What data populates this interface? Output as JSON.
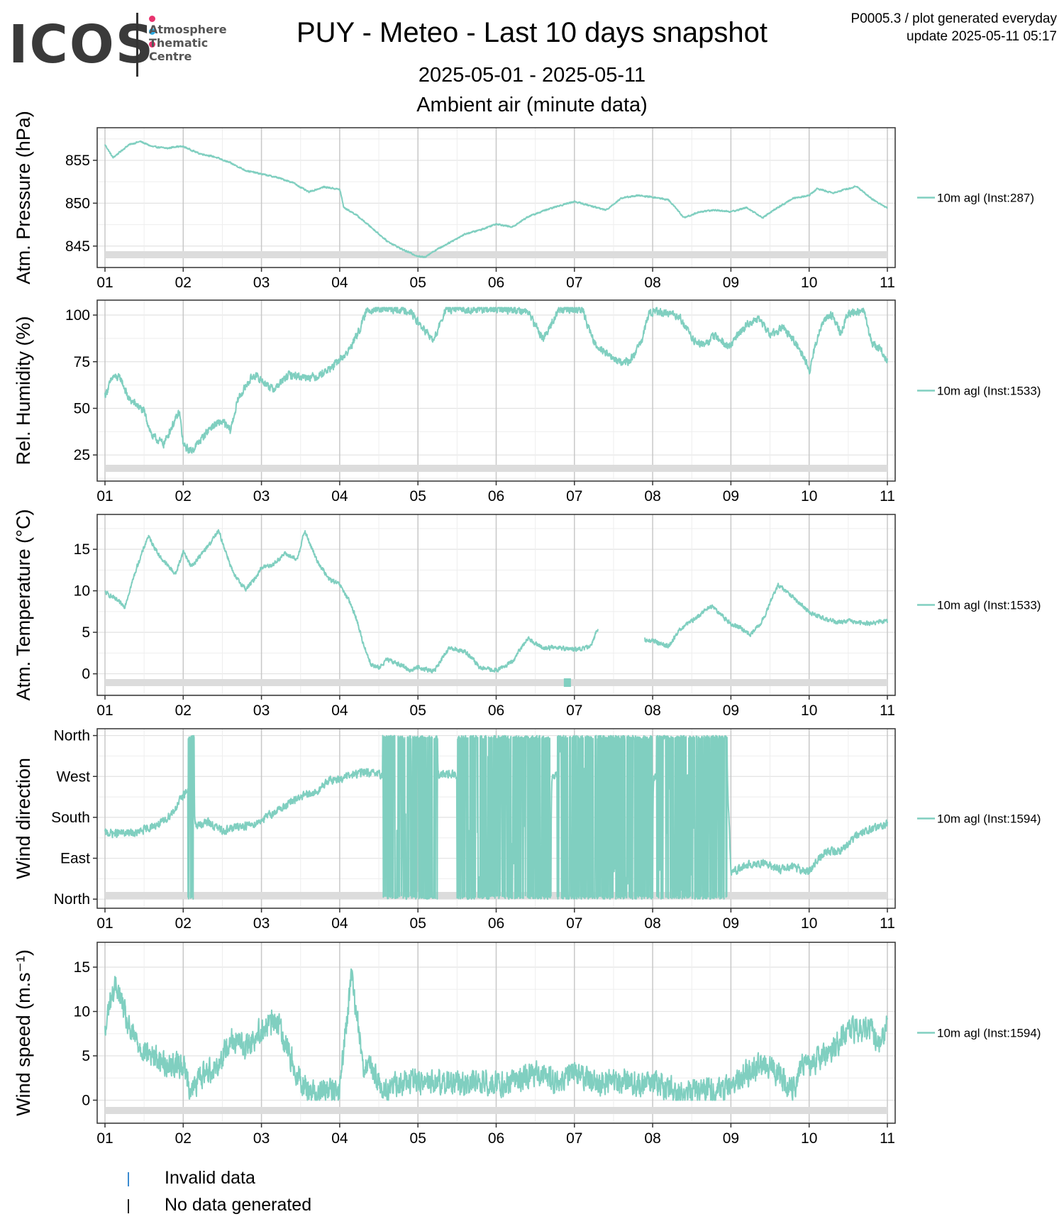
{
  "logo": {
    "word": "ICOS",
    "subtitle": "Atmosphere\nThematic\nCentre",
    "dot_colors": [
      "#e8336e",
      "#2aa8df",
      "#e8336e"
    ]
  },
  "header": {
    "title": "PUY - Meteo - Last 10 days snapshot",
    "date_range": "2025-05-01 - 2025-05-11",
    "subtitle": "Ambient air (minute data)",
    "product_note": "P0005.3 / plot generated everyday",
    "update_note": "update  2025-05-11 05:17"
  },
  "colors": {
    "series": "#80cfc0",
    "invalid": "#3b8bd0",
    "nodata": "#222222",
    "band": "#dcdcdc",
    "grid_major": "#c8c8c8",
    "grid_minor": "#eeeeee"
  },
  "legend_footer": [
    {
      "label": "Invalid data",
      "color": "#3b8bd0"
    },
    {
      "label": "No data generated",
      "color": "#222222"
    }
  ],
  "chart_data": [
    {
      "type": "line",
      "ylabel": "Atm. Pressure (hPa)",
      "x_ticks": [
        "01",
        "02",
        "03",
        "04",
        "05",
        "06",
        "07",
        "08",
        "09",
        "10",
        "11"
      ],
      "xlim": [
        0,
        10
      ],
      "ylim": [
        842.5,
        858.8
      ],
      "y_ticks": [
        845,
        850,
        855
      ],
      "y_tick_labels": [
        "845",
        "850",
        "855"
      ],
      "series": [
        {
          "name": "10m agl (Inst:287)",
          "noise": 0.12,
          "x": [
            0,
            0.1,
            0.3,
            0.45,
            0.6,
            0.8,
            0.9,
            1.0,
            1.2,
            1.4,
            1.6,
            1.8,
            2.0,
            2.2,
            2.4,
            2.6,
            2.8,
            3.0,
            3.05,
            3.2,
            3.4,
            3.6,
            3.8,
            4.0,
            4.08,
            4.2,
            4.4,
            4.6,
            4.8,
            5.0,
            5.2,
            5.4,
            5.6,
            5.8,
            6.0,
            6.2,
            6.4,
            6.6,
            6.8,
            7.0,
            7.2,
            7.4,
            7.6,
            7.8,
            8.0,
            8.2,
            8.4,
            8.6,
            8.8,
            9.0,
            9.1,
            9.3,
            9.5,
            9.6,
            9.8,
            10.0
          ],
          "y": [
            856.8,
            855.3,
            856.8,
            857.2,
            856.6,
            856.4,
            856.6,
            856.6,
            855.8,
            855.4,
            854.7,
            853.8,
            853.4,
            853.0,
            852.4,
            851.3,
            851.9,
            851.6,
            849.5,
            848.7,
            847.2,
            845.6,
            844.6,
            843.8,
            843.7,
            844.4,
            845.4,
            846.4,
            846.9,
            847.6,
            847.2,
            848.4,
            849.1,
            849.7,
            850.2,
            849.7,
            849.2,
            850.6,
            850.9,
            850.7,
            850.4,
            848.3,
            849.0,
            849.2,
            849.0,
            849.5,
            848.3,
            849.5,
            850.6,
            850.9,
            851.7,
            851.2,
            851.7,
            852.0,
            850.5,
            849.4
          ]
        }
      ],
      "invalid_marks": []
    },
    {
      "type": "line",
      "ylabel": "Rel. Humidity (%)",
      "x_ticks": [
        "01",
        "02",
        "03",
        "04",
        "05",
        "06",
        "07",
        "08",
        "09",
        "10",
        "11"
      ],
      "xlim": [
        0,
        10
      ],
      "ylim": [
        11,
        108
      ],
      "y_ticks": [
        25,
        50,
        75,
        100
      ],
      "y_tick_labels": [
        "25",
        "50",
        "75",
        "100"
      ],
      "series": [
        {
          "name": "10m agl (Inst:1533)",
          "noise": 2.8,
          "x": [
            0,
            0.1,
            0.2,
            0.3,
            0.4,
            0.5,
            0.6,
            0.75,
            0.85,
            0.95,
            1.0,
            1.1,
            1.2,
            1.35,
            1.5,
            1.6,
            1.7,
            1.8,
            1.9,
            2.0,
            2.15,
            2.35,
            2.5,
            2.7,
            2.9,
            3.0,
            3.1,
            3.25,
            3.35,
            3.5,
            3.65,
            3.8,
            3.9,
            4.0,
            4.2,
            4.35,
            4.5,
            4.65,
            4.8,
            5.0,
            5.2,
            5.4,
            5.6,
            5.8,
            6.0,
            6.1,
            6.25,
            6.4,
            6.55,
            6.7,
            6.85,
            6.95,
            7.05,
            7.2,
            7.35,
            7.5,
            7.65,
            7.8,
            7.95,
            8.05,
            8.2,
            8.35,
            8.5,
            8.65,
            8.8,
            8.95,
            9.0,
            9.1,
            9.2,
            9.3,
            9.4,
            9.5,
            9.6,
            9.7,
            9.8,
            9.9,
            10.0
          ],
          "y": [
            57,
            67,
            66,
            55,
            52,
            48,
            35,
            31,
            40,
            48,
            30,
            27,
            32,
            40,
            43,
            38,
            55,
            62,
            68,
            65,
            60,
            68,
            67,
            67,
            72,
            76,
            80,
            92,
            103,
            103,
            103,
            103,
            102,
            96,
            86,
            103,
            103,
            103,
            103,
            103,
            103,
            102,
            87,
            103,
            103,
            103,
            85,
            80,
            75,
            75,
            85,
            101,
            102,
            101,
            99,
            87,
            84,
            89,
            83,
            87,
            95,
            98,
            90,
            93,
            87,
            76,
            70,
            88,
            98,
            100,
            90,
            101,
            102,
            102,
            85,
            82,
            75
          ]
        }
      ],
      "invalid_marks": []
    },
    {
      "type": "line",
      "ylabel": "Atm. Temperature (°C)",
      "x_ticks": [
        "01",
        "02",
        "03",
        "04",
        "05",
        "06",
        "07",
        "08",
        "09",
        "10",
        "11"
      ],
      "xlim": [
        0,
        10
      ],
      "ylim": [
        -2.6,
        19.2
      ],
      "y_ticks": [
        0,
        5,
        10,
        15
      ],
      "y_tick_labels": [
        "0",
        "5",
        "10",
        "15"
      ],
      "series": [
        {
          "name": "10m agl (Inst:1533)",
          "noise": 0.35,
          "gaps": [
            [
              6.3,
              6.9
            ]
          ],
          "x": [
            0,
            0.1,
            0.25,
            0.4,
            0.55,
            0.7,
            0.9,
            1.0,
            1.1,
            1.3,
            1.45,
            1.55,
            1.65,
            1.8,
            1.9,
            2.0,
            2.15,
            2.3,
            2.45,
            2.55,
            2.7,
            2.85,
            3.0,
            3.1,
            3.2,
            3.3,
            3.4,
            3.5,
            3.6,
            3.75,
            3.9,
            4.0,
            4.2,
            4.4,
            4.6,
            4.8,
            5.0,
            5.2,
            5.4,
            5.6,
            5.8,
            6.0,
            6.2,
            6.3,
            6.9,
            7.0,
            7.2,
            7.35,
            7.55,
            7.75,
            8.0,
            8.1,
            8.25,
            8.4,
            8.6,
            8.8,
            9.0,
            9.2,
            9.4,
            9.5,
            9.6,
            9.75,
            9.95,
            10.0
          ],
          "y": [
            9.8,
            9.2,
            8.1,
            12.7,
            16.6,
            14.1,
            12.0,
            14.8,
            12.9,
            15.2,
            17.2,
            14.5,
            11.8,
            10.2,
            11.3,
            12.8,
            13.2,
            14.5,
            13.7,
            17.2,
            13.8,
            11.5,
            10.7,
            9.1,
            7.0,
            3.6,
            1.1,
            0.7,
            1.7,
            1.2,
            0.4,
            0.8,
            0.3,
            3.1,
            2.7,
            0.7,
            0.4,
            1.4,
            4.3,
            3.1,
            3.2,
            2.9,
            3.2,
            5.5,
            4.0,
            4.0,
            3.3,
            5.4,
            6.7,
            8.2,
            6.0,
            5.7,
            4.7,
            6.4,
            10.7,
            9.2,
            7.4,
            6.6,
            6.2,
            6.4,
            6.1,
            6.1,
            6.3,
            6.3
          ]
        }
      ],
      "invalid_marks": [
        5.91
      ]
    },
    {
      "type": "line",
      "ylabel": "Wind direction",
      "x_ticks": [
        "01",
        "02",
        "03",
        "04",
        "05",
        "06",
        "07",
        "08",
        "09",
        "10",
        "11"
      ],
      "xlim": [
        0,
        10
      ],
      "ylim": [
        -20,
        375
      ],
      "y_ticks": [
        0,
        90,
        180,
        270,
        360
      ],
      "y_tick_labels": [
        "North",
        "East",
        "South",
        "West",
        "North"
      ],
      "series": [
        {
          "name": "10m agl (Inst:1594)",
          "noise": 12,
          "chaotic": [
            [
              1.06,
              1.14
            ],
            [
              3.55,
              4.25
            ],
            [
              4.5,
              5.7
            ],
            [
              5.78,
              7.0
            ],
            [
              7.05,
              7.95
            ]
          ],
          "x": [
            0,
            0.2,
            0.4,
            0.6,
            0.75,
            0.9,
            1.0,
            1.05,
            1.15,
            1.3,
            1.5,
            1.7,
            1.9,
            2.1,
            2.3,
            2.5,
            2.7,
            2.85,
            3.0,
            3.3,
            3.6,
            4.0,
            4.5,
            5.0,
            5.5,
            6.0,
            6.5,
            7.0,
            7.5,
            7.95,
            8.0,
            8.2,
            8.4,
            8.6,
            8.8,
            9.0,
            9.2,
            9.4,
            9.6,
            9.8,
            10.0
          ],
          "y": [
            145,
            145,
            145,
            160,
            170,
            200,
            230,
            240,
            160,
            170,
            150,
            160,
            165,
            185,
            205,
            225,
            235,
            260,
            265,
            280,
            270,
            270,
            275,
            270,
            270,
            275,
            270,
            270,
            270,
            270,
            60,
            75,
            80,
            65,
            70,
            60,
            105,
            105,
            140,
            155,
            165
          ]
        }
      ],
      "invalid_marks": []
    },
    {
      "type": "line",
      "ylabel": "Wind speed (m.s⁻¹)",
      "x_ticks": [
        "01",
        "02",
        "03",
        "04",
        "05",
        "06",
        "07",
        "08",
        "09",
        "10",
        "11"
      ],
      "xlim": [
        0,
        10
      ],
      "ylim": [
        -2.6,
        17.8
      ],
      "y_ticks": [
        0,
        5,
        10,
        15
      ],
      "y_tick_labels": [
        "0",
        "5",
        "10",
        "15"
      ],
      "series": [
        {
          "name": "10m agl (Inst:1594)",
          "noise": 1.9,
          "x": [
            0,
            0.05,
            0.15,
            0.3,
            0.45,
            0.6,
            0.8,
            1.0,
            1.1,
            1.25,
            1.45,
            1.6,
            1.8,
            2.0,
            2.2,
            2.45,
            2.6,
            2.8,
            3.0,
            3.05,
            3.15,
            3.3,
            3.45,
            3.55,
            3.75,
            4.0,
            4.2,
            4.5,
            4.8,
            5.0,
            5.2,
            5.5,
            5.8,
            6.0,
            6.3,
            6.6,
            6.9,
            7.0,
            7.3,
            7.6,
            7.9,
            8.0,
            8.2,
            8.4,
            8.6,
            8.8,
            8.9,
            9.0,
            9.2,
            9.4,
            9.6,
            9.8,
            9.9,
            10.0
          ],
          "y": [
            7,
            11,
            13,
            8,
            6,
            5,
            4,
            4,
            1,
            3,
            4,
            7,
            6,
            8,
            9,
            3,
            1,
            1,
            1,
            6,
            14,
            4,
            3,
            1,
            2,
            2,
            2,
            2,
            2,
            2,
            2,
            3,
            2,
            3,
            2,
            2,
            2,
            2,
            1,
            1,
            1,
            2,
            3,
            4,
            3,
            1,
            4,
            4,
            5,
            7,
            8,
            8,
            6,
            9
          ]
        }
      ],
      "invalid_marks": []
    }
  ]
}
